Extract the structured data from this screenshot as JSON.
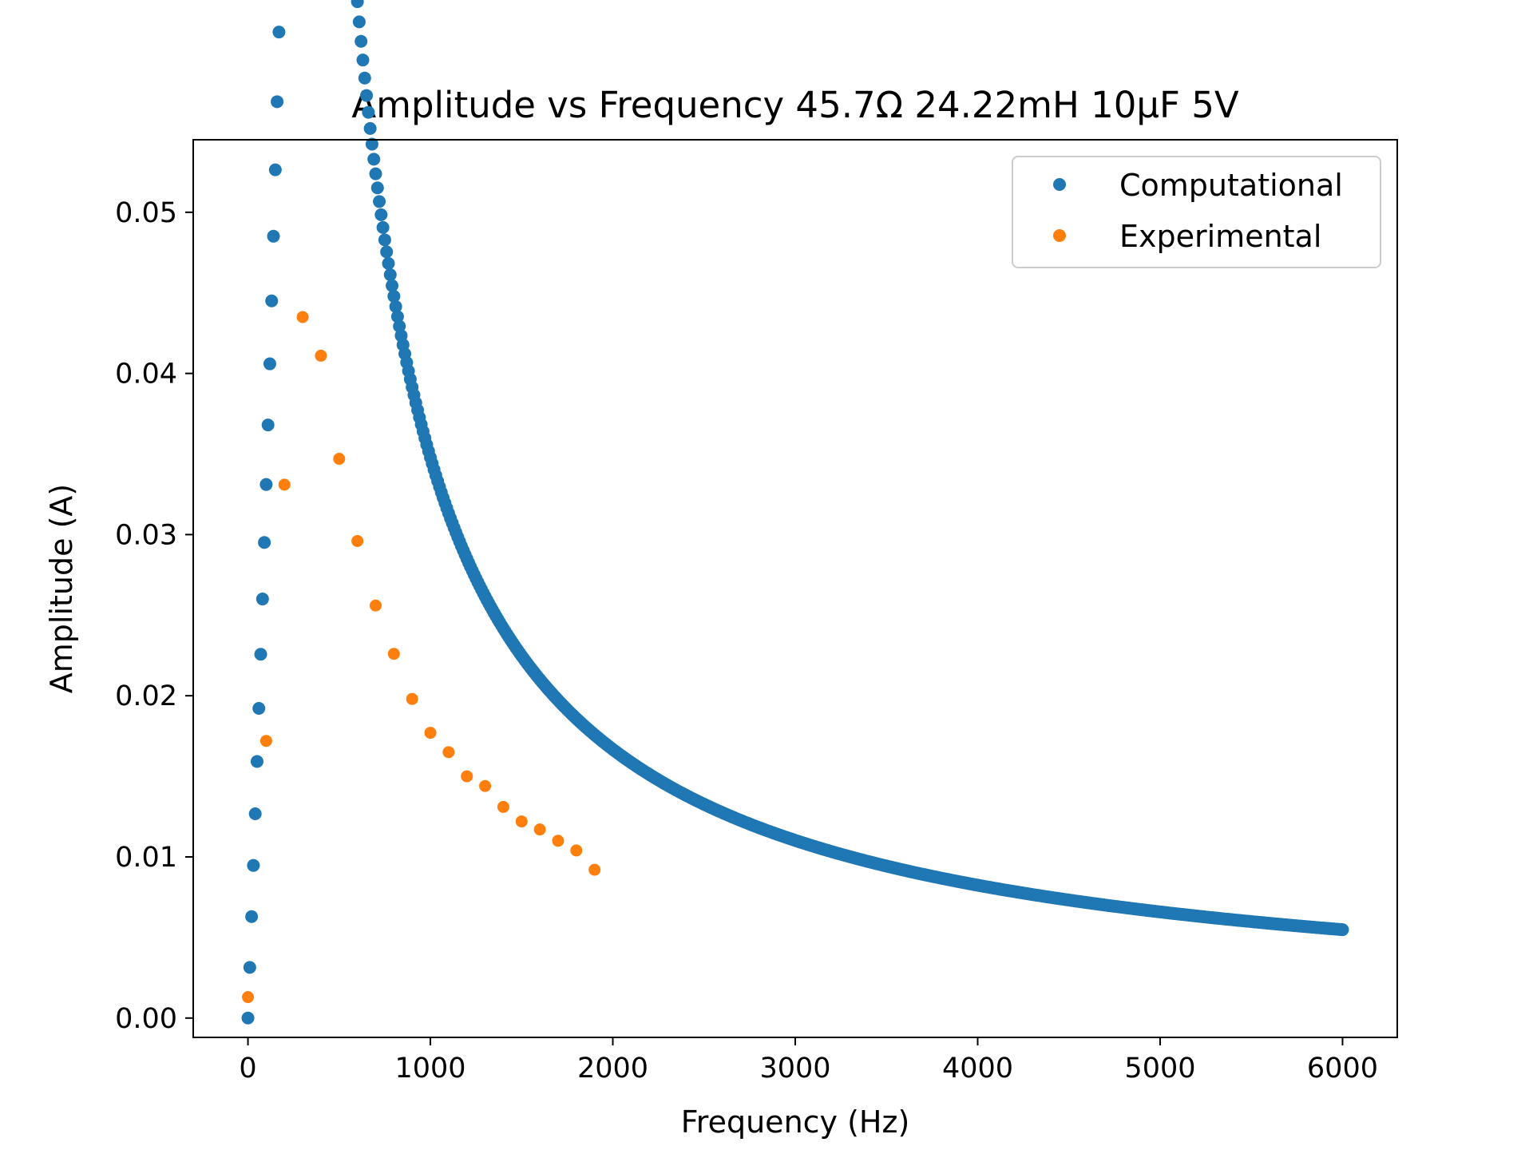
{
  "chart_data": {
    "type": "scatter",
    "title": "Amplitude vs Frequency 45.7Ω 24.22mH 10μF 5V",
    "xlabel": "Frequency (Hz)",
    "ylabel": "Amplitude (A)",
    "xlim": [
      -300,
      6300
    ],
    "ylim": [
      -0.0012,
      0.0545
    ],
    "xticks": [
      0,
      1000,
      2000,
      3000,
      4000,
      5000,
      6000
    ],
    "xtick_labels": [
      "0",
      "1000",
      "2000",
      "3000",
      "4000",
      "5000",
      "6000"
    ],
    "yticks": [
      0.0,
      0.01,
      0.02,
      0.03,
      0.04,
      0.05
    ],
    "ytick_labels": [
      "0.00",
      "0.01",
      "0.02",
      "0.03",
      "0.04",
      "0.05"
    ],
    "grid": false,
    "legend_position": "top-right",
    "series": [
      {
        "name": "Computational",
        "color": "#1f77b4",
        "model": {
          "R_ohm": 45.7,
          "L_henry": 0.02422,
          "C_farad": 1e-05,
          "V_volt": 5,
          "x_start": 0,
          "x_end": 6000,
          "x_step": 10
        }
      },
      {
        "name": "Experimental",
        "color": "#ff7f0e",
        "x": [
          0,
          100,
          200,
          300,
          400,
          500,
          600,
          700,
          800,
          900,
          1000,
          1100,
          1200,
          1300,
          1400,
          1500,
          1600,
          1700,
          1800,
          1900
        ],
        "y": [
          0.0013,
          0.0172,
          0.0331,
          0.0435,
          0.0411,
          0.0347,
          0.0296,
          0.0256,
          0.0226,
          0.0198,
          0.0177,
          0.0165,
          0.015,
          0.0144,
          0.0131,
          0.0122,
          0.0117,
          0.011,
          0.0104,
          0.0092
        ]
      }
    ]
  }
}
